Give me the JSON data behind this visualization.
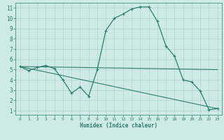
{
  "xlabel": "Humidex (Indice chaleur)",
  "bg_color": "#ceeae6",
  "grid_color": "#b0d4d0",
  "line_color": "#2e7d6e",
  "axis_color": "#2e7d6e",
  "x_ticks": [
    0,
    1,
    2,
    3,
    4,
    5,
    6,
    7,
    8,
    9,
    10,
    11,
    12,
    13,
    14,
    15,
    16,
    17,
    18,
    19,
    20,
    21,
    22,
    23
  ],
  "y_ticks": [
    1,
    2,
    3,
    4,
    5,
    6,
    7,
    8,
    9,
    10,
    11
  ],
  "ylim": [
    0.6,
    11.5
  ],
  "xlim": [
    -0.5,
    23.5
  ],
  "series_main": {
    "x": [
      0,
      1,
      2,
      3,
      4,
      5,
      6,
      7,
      8,
      9,
      10,
      11,
      12,
      13,
      14,
      15,
      16,
      17,
      18,
      19,
      20,
      21,
      22,
      23
    ],
    "y": [
      5.3,
      4.9,
      5.2,
      5.4,
      5.1,
      4.0,
      2.7,
      3.3,
      2.4,
      5.0,
      8.8,
      10.0,
      10.4,
      10.9,
      11.1,
      11.1,
      9.7,
      7.3,
      6.3,
      4.0,
      3.8,
      2.9,
      1.1,
      1.2
    ]
  },
  "series_diag": {
    "x": [
      0,
      23
    ],
    "y": [
      5.3,
      1.2
    ]
  },
  "series_flat": {
    "x": [
      0,
      23
    ],
    "y": [
      5.3,
      5.0
    ]
  }
}
